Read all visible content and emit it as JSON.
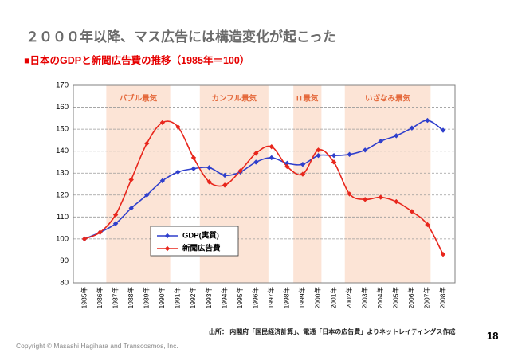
{
  "slide": {
    "title": "２０００年以降、マス広告には構造変化が起こった",
    "source": "出所： 内閣府「国民経済計算」、電通「日本の広告費」よりネットレイティングス作成",
    "page_number": "18",
    "copyright": "Copyright © Masashi Hagihara and Transcosmos, Inc."
  },
  "chart_data": {
    "type": "line",
    "title": "■日本のGDPと新聞広告費の推移（1985年＝100）",
    "categories": [
      "1985年",
      "1986年",
      "1987年",
      "1988年",
      "1989年",
      "1990年",
      "1991年",
      "1992年",
      "1993年",
      "1994年",
      "1995年",
      "1996年",
      "1997年",
      "1998年",
      "1999年",
      "2000年",
      "2001年",
      "2002年",
      "2003年",
      "2004年",
      "2005年",
      "2006年",
      "2007年",
      "2008年"
    ],
    "ylim": [
      80,
      170
    ],
    "yticks": [
      80,
      90,
      100,
      110,
      120,
      130,
      140,
      150,
      160,
      170
    ],
    "grid": true,
    "smooth": true,
    "legend": "bottom-left",
    "series": [
      {
        "name": "GDP(実質)",
        "color": "#2f3fcc",
        "marker": "diamond",
        "values": [
          100,
          103,
          107,
          114,
          120,
          126.5,
          130.5,
          132,
          132.5,
          129,
          130.5,
          135,
          137,
          134.5,
          134,
          138,
          138,
          138.5,
          140.5,
          144.5,
          147,
          150.5,
          154,
          149.5
        ]
      },
      {
        "name": "新聞広告費",
        "color": "#e8261c",
        "marker": "diamond",
        "values": [
          100,
          103,
          111,
          127,
          143.5,
          153,
          151,
          137,
          126,
          124.5,
          131,
          139,
          142,
          133,
          129.5,
          140.5,
          135,
          120.5,
          118,
          119,
          117,
          112.5,
          106.5,
          93
        ]
      }
    ],
    "shaded_periods": {
      "color": "#fce4d6",
      "label_color": "#e4683a",
      "periods": [
        {
          "label": "バブル景気",
          "from": 1986.4,
          "to": 1990.5
        },
        {
          "label": "カンフル景気",
          "from": 1992.4,
          "to": 1996.8
        },
        {
          "label": "IT景気",
          "from": 1998.4,
          "to": 2000.2
        },
        {
          "label": "いざなみ景気",
          "from": 2001.7,
          "to": 2007.2
        }
      ]
    }
  }
}
